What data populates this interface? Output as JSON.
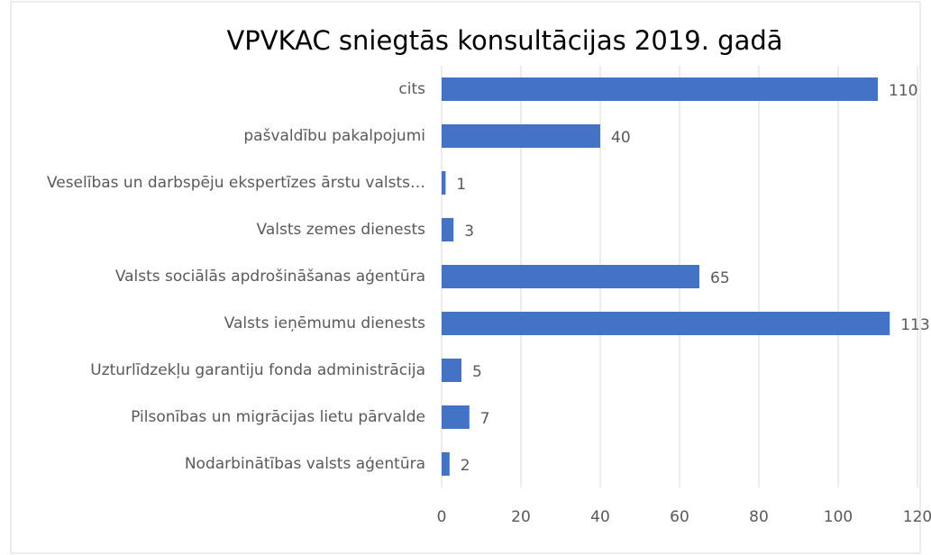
{
  "chart_data": {
    "type": "bar",
    "orientation": "horizontal",
    "title": "VPVKAC sniegtās konsultācijas 2019. gadā",
    "categories": [
      "cits",
      "pašvaldību pakalpojumi",
      "Veselības un darbspēju ekspertīzes ārstu valsts…",
      "Valsts zemes dienests",
      "Valsts sociālās apdrošināšanas aģentūra",
      "Valsts ieņēmumu dienests",
      "Uzturlīdzekļu garantiju fonda administrācija",
      "Pilsonības un migrācijas lietu pārvalde",
      "Nodarbinātības valsts aģentūra"
    ],
    "values": [
      110,
      40,
      1,
      3,
      65,
      113,
      5,
      7,
      2
    ],
    "color": "#4472c4",
    "xlim": [
      0,
      120
    ],
    "xticks": [
      0,
      20,
      40,
      60,
      80,
      100,
      120
    ],
    "grid": true
  }
}
